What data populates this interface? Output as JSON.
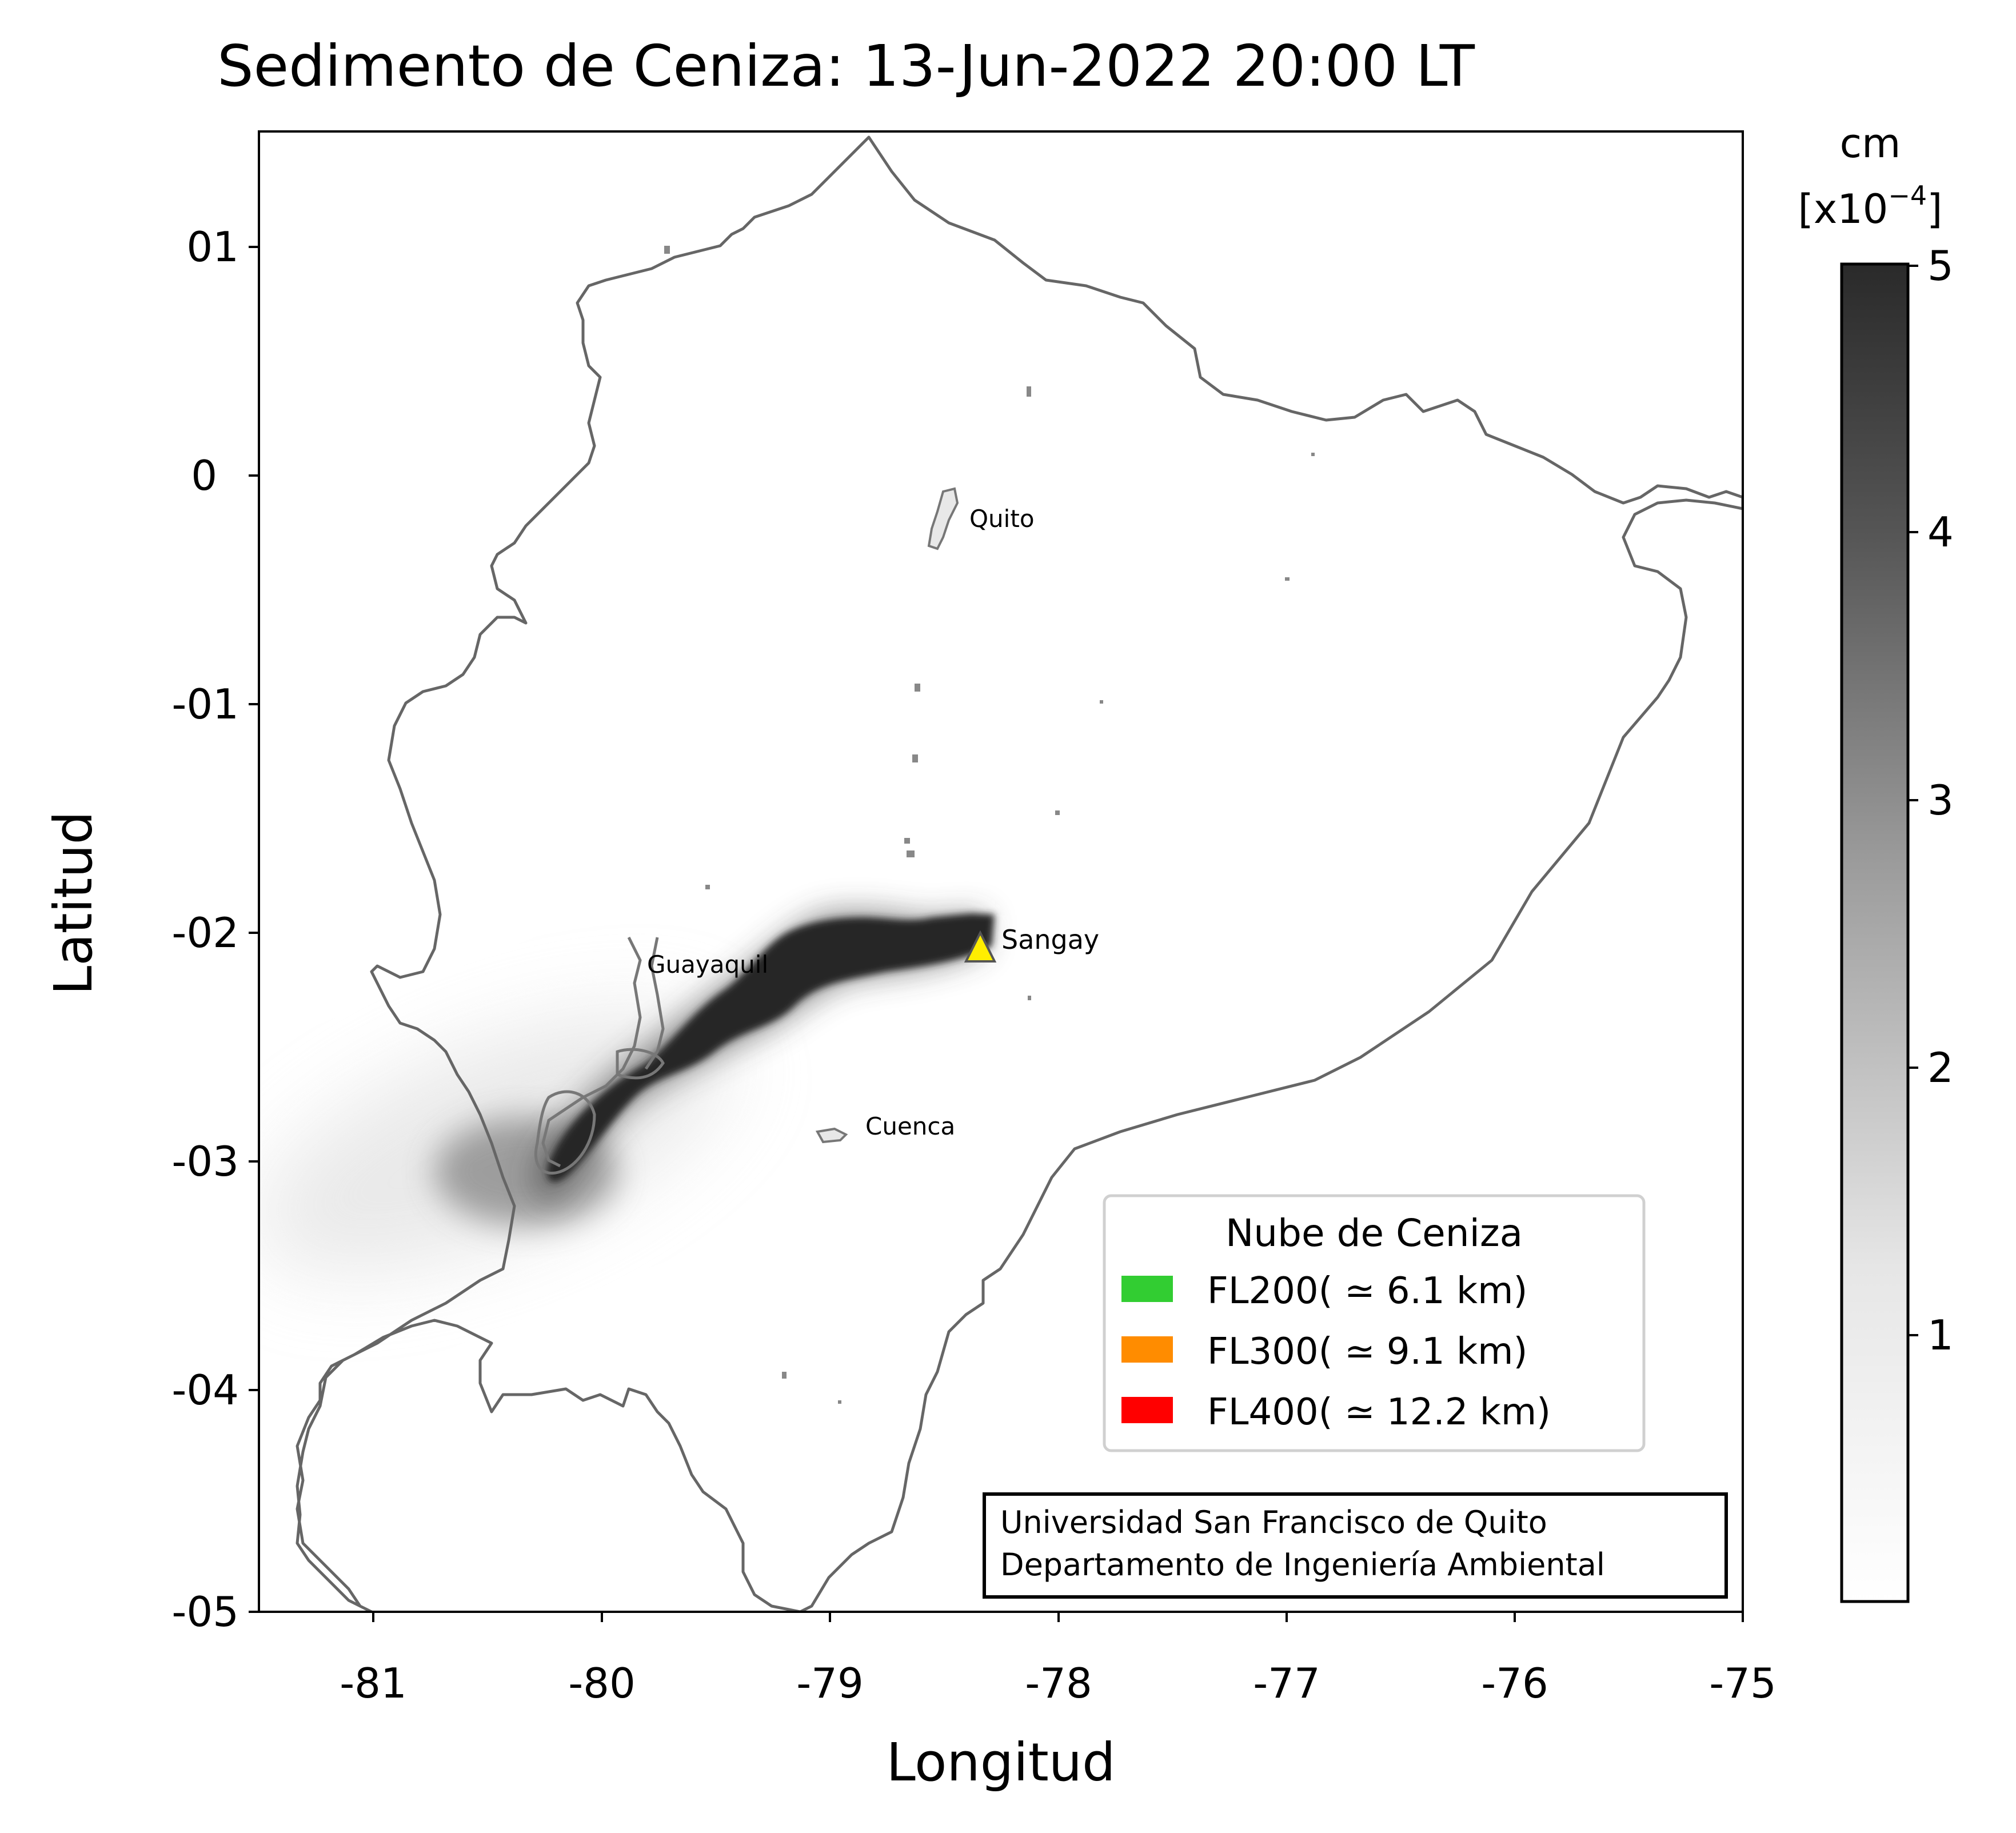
{
  "title": "Sedimento de Ceniza: 13-Jun-2022 20:00 LT",
  "xlabel": "Longitud",
  "ylabel": "Latitud",
  "x_ticks": [
    "-81",
    "-80",
    "-79",
    "-78",
    "-77",
    "-76",
    "-75"
  ],
  "y_ticks": [
    "01",
    "0",
    "-01",
    "-02",
    "-03",
    "-04",
    "-05"
  ],
  "colorbar": {
    "unit_line1": "cm",
    "unit_line2": "[x10",
    "unit_exp": "−4",
    "unit_close": "]",
    "ticks": [
      "5",
      "4",
      "3",
      "2",
      "1"
    ],
    "range": [
      0,
      5
    ],
    "colormap": "white-to-dark-grey"
  },
  "cities": [
    {
      "name": "Quito",
      "lon": -78.5,
      "lat": -0.2
    },
    {
      "name": "Guayaquil",
      "lon": -79.9,
      "lat": -2.19
    },
    {
      "name": "Cuenca",
      "lon": -79.0,
      "lat": -2.9
    }
  ],
  "volcano": {
    "name": "Sangay",
    "lon": -78.34,
    "lat": -2.0,
    "marker": "yellow-triangle"
  },
  "legend": {
    "title": "Nube de Ceniza",
    "items": [
      {
        "label": "FL200( ≃ 6.1 km)",
        "color": "#32cd32"
      },
      {
        "label": "FL300( ≃ 9.1 km)",
        "color": "#ff8c00"
      },
      {
        "label": "FL400( ≃ 12.2 km)",
        "color": "#ff0000"
      }
    ]
  },
  "credits": {
    "line1": "Universidad San Francisco de Quito",
    "line2": "Departamento de Ingeniería Ambiental"
  }
}
